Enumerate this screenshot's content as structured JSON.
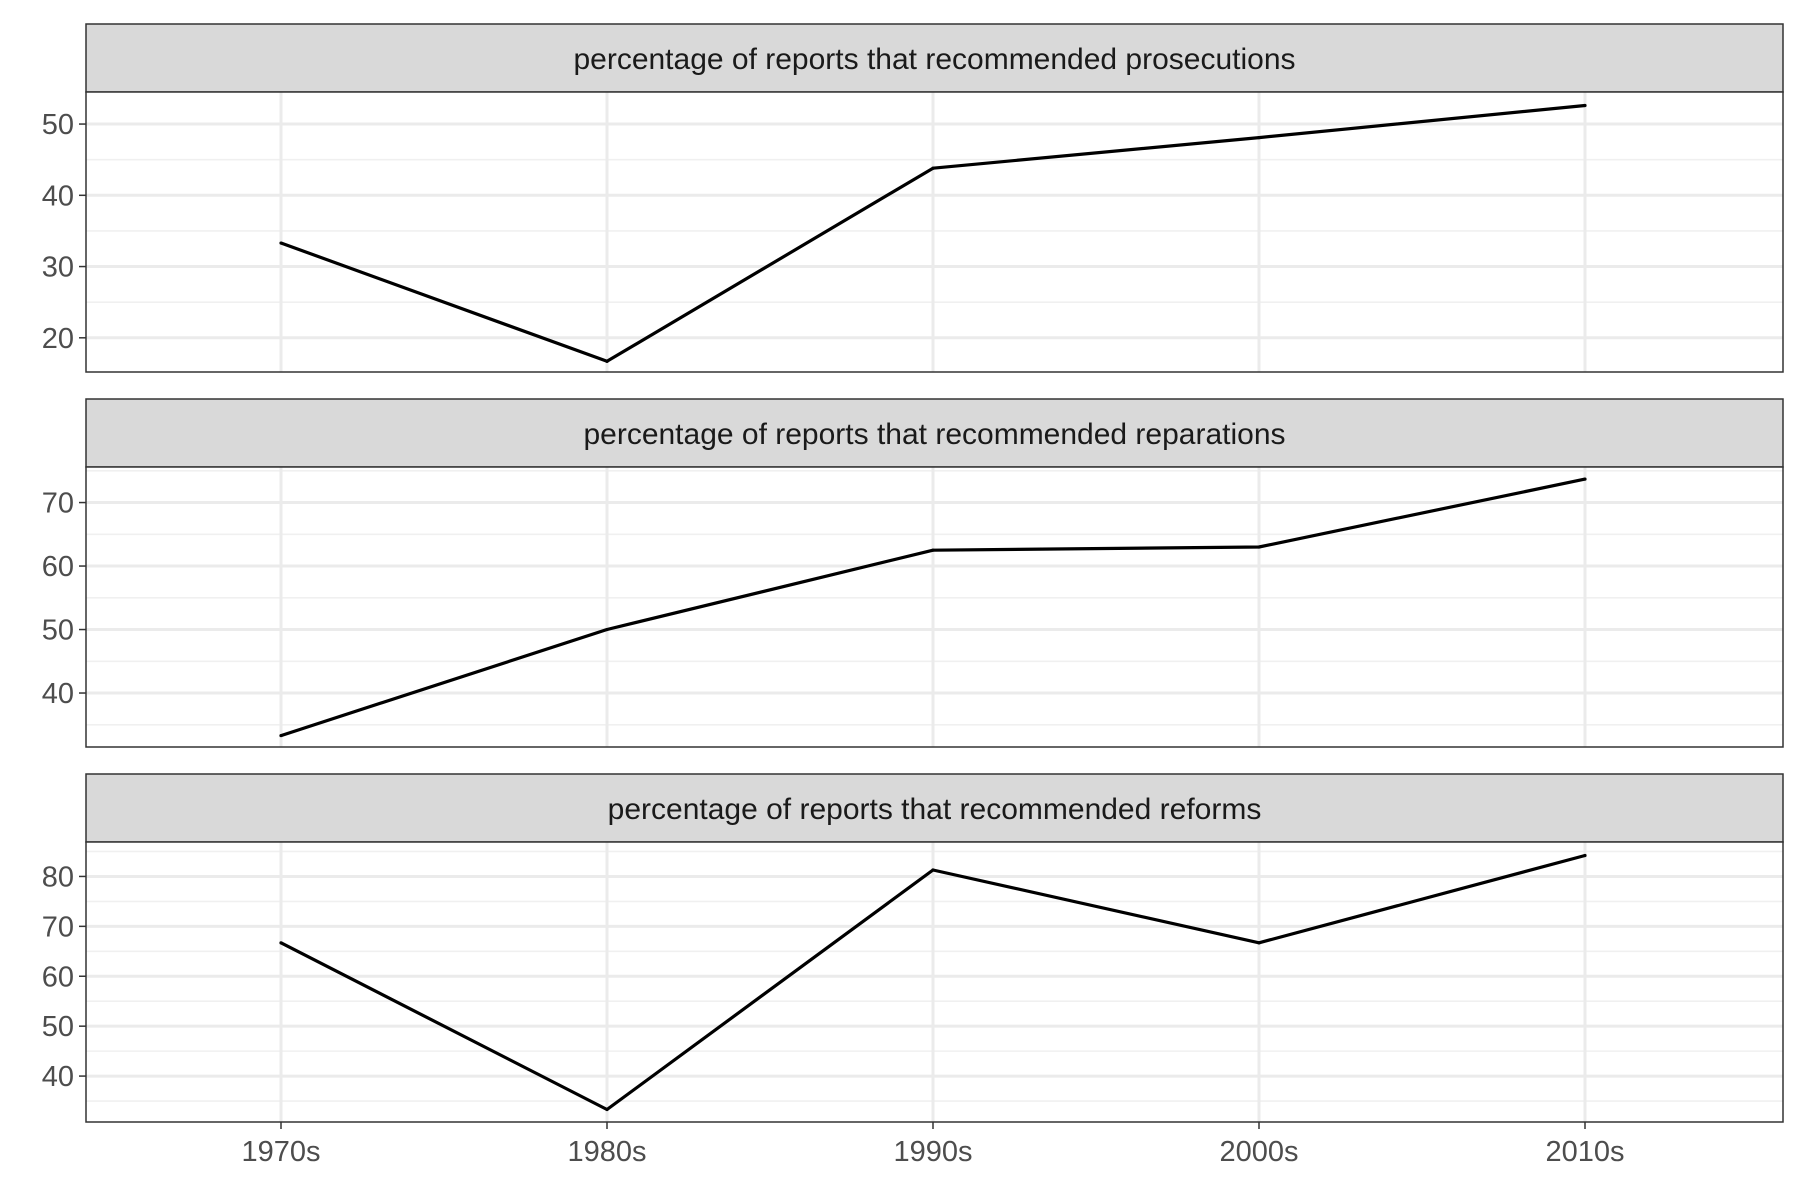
{
  "chart_data": {
    "type": "line",
    "facet_layout": "vertical",
    "grid": true,
    "categories": [
      "1970s",
      "1980s",
      "1990s",
      "2000s",
      "2010s"
    ],
    "panels": [
      {
        "strip": "percentage of reports that recommended prosecutions",
        "values": [
          33.3,
          16.7,
          43.8,
          48.1,
          52.6
        ],
        "ylim": [
          15.2,
          54.5
        ],
        "yticks": [
          20,
          30,
          40,
          50
        ]
      },
      {
        "strip": "percentage of reports that recommended reparations",
        "values": [
          33.3,
          50.0,
          62.5,
          63.0,
          73.7
        ],
        "ylim": [
          31.5,
          75.6
        ],
        "yticks": [
          40,
          50,
          60,
          70
        ]
      },
      {
        "strip": "percentage of reports that recommended reforms",
        "values": [
          66.7,
          33.3,
          81.3,
          66.7,
          84.2
        ],
        "ylim": [
          30.8,
          86.9
        ],
        "yticks": [
          40,
          50,
          60,
          70,
          80
        ]
      }
    ]
  }
}
